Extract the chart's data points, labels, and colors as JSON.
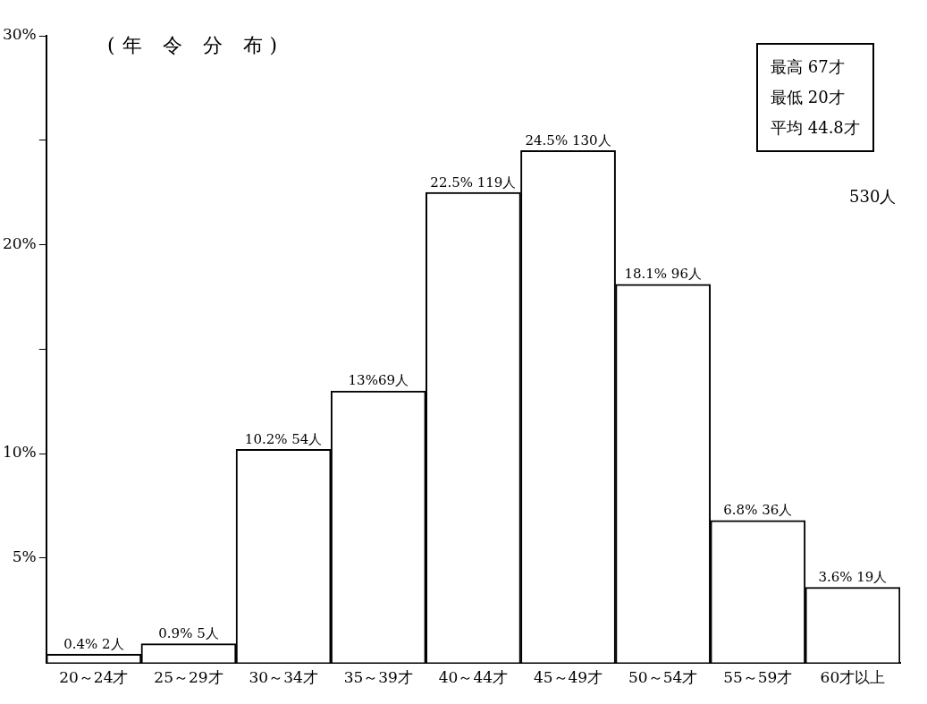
{
  "chart_data": {
    "type": "bar",
    "title": "(年 令 分 布)",
    "categories": [
      "20～24才",
      "25～29才",
      "30～34才",
      "35～39才",
      "40～44才",
      "45～49才",
      "50～54才",
      "55～59才",
      "60才以上"
    ],
    "values": [
      0.4,
      0.9,
      10.2,
      13,
      22.5,
      24.5,
      18.1,
      6.8,
      3.6
    ],
    "value_labels": [
      "0.4% 2人",
      "0.9% 5人",
      "10.2% 54人",
      "13%69人",
      "22.5% 119人",
      "24.5% 130人",
      "18.1% 96人",
      "6.8% 36人",
      "3.6% 19人"
    ],
    "color": "#ffffff",
    "ylim": [
      0,
      30
    ],
    "yticks": [
      {
        "value": 5,
        "label": "5%"
      },
      {
        "value": 10,
        "label": "10%"
      },
      {
        "value": 15,
        "label": null
      },
      {
        "value": 20,
        "label": "20%"
      },
      {
        "value": 25,
        "label": null
      },
      {
        "value": 30,
        "label": "30%"
      }
    ],
    "annotations": [
      "最高 67才",
      "最低 20才",
      "平均 44.8才",
      "530人"
    ],
    "grid": false,
    "legend": false
  }
}
